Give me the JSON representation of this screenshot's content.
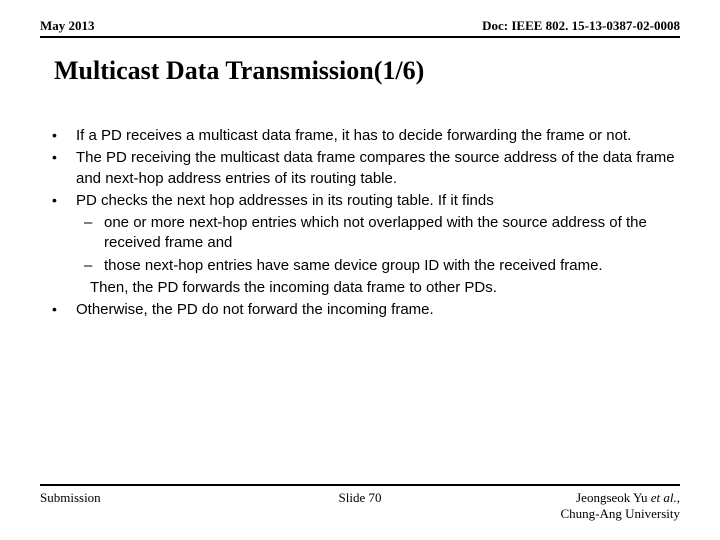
{
  "header": {
    "date": "May 2013",
    "doc": "Doc: IEEE 802. 15-13-0387-02-0008"
  },
  "title": "Multicast Data Transmission(1/6)",
  "bullets": [
    {
      "text": "If a PD receives a multicast data frame, it has to decide forwarding the frame or not."
    },
    {
      "text": "The PD receiving the multicast data frame compares the source address of the data frame and next-hop address entries of its routing table."
    },
    {
      "text": "PD checks the next hop addresses in its routing table. If it finds",
      "sub": [
        "one or more next-hop entries which not overlapped with the source address of the received frame and",
        "those next-hop entries have same device group ID with the received frame."
      ],
      "then": "Then, the PD forwards the incoming data frame to other PDs."
    },
    {
      "text": "Otherwise, the PD do not forward the incoming frame."
    }
  ],
  "footer": {
    "left": "Submission",
    "center": "Slide 70",
    "author": "Jeongseok Yu",
    "etal": " et al.",
    "sep": ", ",
    "affiliation": "Chung-Ang University"
  }
}
